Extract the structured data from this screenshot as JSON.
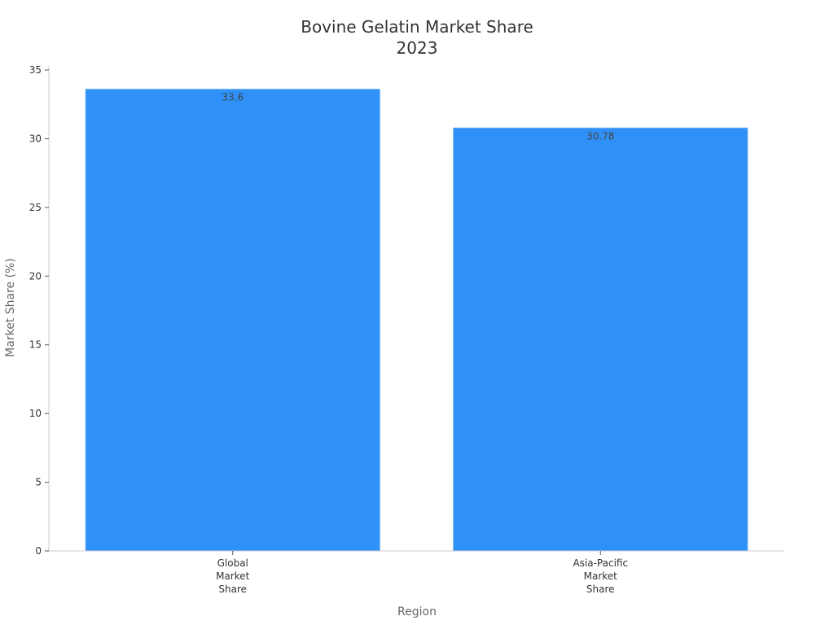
{
  "chart_data": {
    "type": "bar",
    "title": [
      "Bovine Gelatin Market Share",
      "2023"
    ],
    "xlabel": "Region",
    "ylabel": "Market Share (%)",
    "categories": [
      [
        "Global",
        "Market",
        "Share"
      ],
      [
        "Asia-Pacific",
        "Market",
        "Share"
      ]
    ],
    "values": [
      33.6,
      30.78
    ],
    "data_labels": [
      "33.6",
      "30.78"
    ],
    "ylim": [
      0,
      35
    ],
    "yticks": [
      0,
      5,
      10,
      15,
      20,
      25,
      30,
      35
    ],
    "grid": false,
    "legend": "none",
    "bar_color": "#2f91f8"
  }
}
